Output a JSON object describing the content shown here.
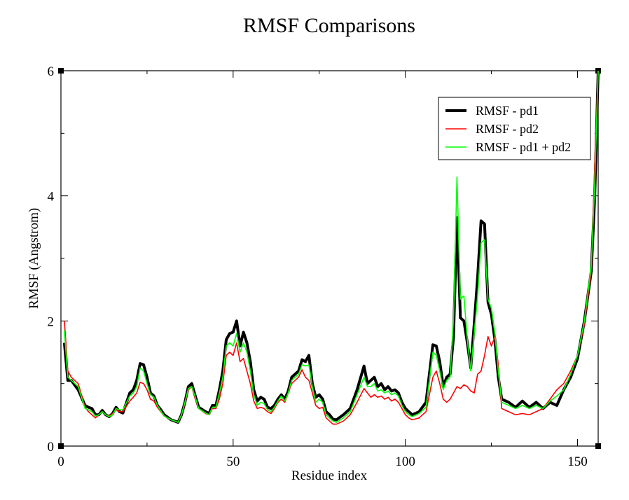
{
  "chart_data": {
    "type": "line",
    "title": "RMSF Comparisons",
    "xlabel": "Residue index",
    "ylabel": "RMSF (Angstrom)",
    "xlim": [
      0,
      156
    ],
    "ylim": [
      0,
      6
    ],
    "xticks": [
      0,
      50,
      100,
      150
    ],
    "yticks": [
      0,
      2,
      4,
      6
    ],
    "legend_position": "top-right",
    "series": [
      {
        "name": "RMSF - pd1",
        "color": "#000000",
        "x": [
          1,
          2,
          3,
          5,
          7,
          8,
          9,
          10,
          11,
          12,
          13,
          14,
          15,
          16,
          17,
          18,
          20,
          21,
          22,
          23,
          24,
          25,
          26,
          27,
          28,
          29,
          30,
          32,
          33,
          34,
          35,
          36,
          37,
          38,
          39,
          40,
          42,
          43,
          44,
          45,
          46,
          47,
          48,
          49,
          50,
          51,
          52,
          53,
          54,
          55,
          56,
          57,
          58,
          59,
          60,
          61,
          62,
          63,
          64,
          65,
          66,
          67,
          68,
          69,
          70,
          71,
          72,
          73,
          74,
          75,
          76,
          77,
          78,
          79,
          80,
          82,
          84,
          86,
          88,
          89,
          90,
          91,
          92,
          93,
          94,
          95,
          96,
          97,
          98,
          99,
          100,
          101,
          102,
          104,
          106,
          108,
          109,
          110,
          111,
          112,
          113,
          114,
          115,
          116,
          117,
          118,
          119,
          120,
          121,
          122,
          123,
          124,
          125,
          126,
          127,
          128,
          130,
          132,
          134,
          136,
          138,
          140,
          142,
          144,
          146,
          148,
          150,
          152,
          154,
          155,
          156
        ],
        "values": [
          1.65,
          1.05,
          1.05,
          0.9,
          0.65,
          0.62,
          0.6,
          0.5,
          0.5,
          0.57,
          0.5,
          0.47,
          0.52,
          0.62,
          0.55,
          0.53,
          0.85,
          0.9,
          1.05,
          1.32,
          1.3,
          1.1,
          0.85,
          0.8,
          0.65,
          0.58,
          0.5,
          0.42,
          0.4,
          0.38,
          0.5,
          0.7,
          0.95,
          1.0,
          0.8,
          0.62,
          0.55,
          0.52,
          0.65,
          0.65,
          0.9,
          1.2,
          1.7,
          1.8,
          1.82,
          2.0,
          1.6,
          1.82,
          1.65,
          1.35,
          0.9,
          0.72,
          0.78,
          0.75,
          0.62,
          0.6,
          0.65,
          0.75,
          0.82,
          0.75,
          0.88,
          1.1,
          1.15,
          1.2,
          1.38,
          1.35,
          1.45,
          1.0,
          0.78,
          0.82,
          0.75,
          0.55,
          0.5,
          0.43,
          0.42,
          0.5,
          0.6,
          0.9,
          1.28,
          1.0,
          1.05,
          1.1,
          0.95,
          1.0,
          0.9,
          0.95,
          0.88,
          0.9,
          0.85,
          0.7,
          0.6,
          0.55,
          0.5,
          0.55,
          0.7,
          1.62,
          1.6,
          1.35,
          0.95,
          1.1,
          1.15,
          1.75,
          3.65,
          2.05,
          2.0,
          1.65,
          1.25,
          1.95,
          2.7,
          3.6,
          3.55,
          2.3,
          2.1,
          1.7,
          1.1,
          0.75,
          0.7,
          0.62,
          0.72,
          0.62,
          0.7,
          0.6,
          0.7,
          0.65,
          0.9,
          1.1,
          1.4,
          2.0,
          2.8,
          4.0,
          6.0
        ]
      },
      {
        "name": "RMSF - pd2",
        "color": "#ff0000",
        "x": [
          1,
          2,
          3,
          5,
          7,
          8,
          9,
          10,
          11,
          12,
          13,
          14,
          15,
          16,
          17,
          18,
          20,
          21,
          22,
          23,
          24,
          25,
          26,
          27,
          28,
          29,
          30,
          32,
          33,
          34,
          35,
          36,
          37,
          38,
          39,
          40,
          42,
          43,
          44,
          45,
          46,
          47,
          48,
          49,
          50,
          51,
          52,
          53,
          54,
          55,
          56,
          57,
          58,
          59,
          60,
          61,
          62,
          63,
          64,
          65,
          66,
          67,
          68,
          69,
          70,
          71,
          72,
          73,
          74,
          75,
          76,
          77,
          78,
          79,
          80,
          82,
          84,
          86,
          88,
          89,
          90,
          91,
          92,
          93,
          94,
          95,
          96,
          97,
          98,
          99,
          100,
          101,
          102,
          104,
          106,
          108,
          109,
          110,
          111,
          112,
          113,
          114,
          115,
          116,
          117,
          118,
          119,
          120,
          121,
          122,
          123,
          124,
          125,
          126,
          127,
          128,
          130,
          132,
          134,
          136,
          138,
          140,
          142,
          144,
          146,
          148,
          150,
          152,
          154,
          155,
          156
        ],
        "values": [
          2.0,
          1.2,
          1.1,
          1.0,
          0.62,
          0.55,
          0.5,
          0.45,
          0.5,
          0.55,
          0.5,
          0.48,
          0.52,
          0.58,
          0.55,
          0.55,
          0.72,
          0.78,
          0.85,
          1.02,
          1.0,
          0.9,
          0.75,
          0.72,
          0.62,
          0.55,
          0.48,
          0.42,
          0.4,
          0.38,
          0.5,
          0.68,
          0.9,
          0.95,
          0.75,
          0.6,
          0.52,
          0.5,
          0.6,
          0.6,
          0.75,
          1.0,
          1.45,
          1.5,
          1.45,
          1.65,
          1.35,
          1.4,
          1.2,
          1.0,
          0.72,
          0.6,
          0.62,
          0.6,
          0.55,
          0.52,
          0.6,
          0.7,
          0.75,
          0.7,
          0.85,
          1.0,
          1.05,
          1.1,
          1.22,
          1.1,
          1.05,
          0.85,
          0.65,
          0.6,
          0.62,
          0.45,
          0.4,
          0.35,
          0.35,
          0.4,
          0.5,
          0.7,
          0.92,
          0.85,
          0.78,
          0.82,
          0.78,
          0.8,
          0.75,
          0.78,
          0.72,
          0.75,
          0.7,
          0.6,
          0.5,
          0.45,
          0.42,
          0.45,
          0.55,
          1.1,
          1.2,
          1.0,
          0.75,
          0.7,
          0.75,
          0.85,
          0.95,
          0.92,
          0.98,
          0.95,
          0.88,
          0.85,
          1.15,
          1.2,
          1.45,
          1.75,
          1.6,
          1.75,
          1.3,
          0.6,
          0.55,
          0.5,
          0.52,
          0.5,
          0.55,
          0.6,
          0.75,
          0.9,
          1.0,
          1.2,
          1.45,
          1.95,
          2.8,
          4.5,
          6.0
        ]
      },
      {
        "name": "RMSF - pd1 + pd2",
        "color": "#00ff00",
        "x": [
          1,
          2,
          3,
          5,
          7,
          8,
          9,
          10,
          11,
          12,
          13,
          14,
          15,
          16,
          17,
          18,
          20,
          21,
          22,
          23,
          24,
          25,
          26,
          27,
          28,
          29,
          30,
          32,
          33,
          34,
          35,
          36,
          37,
          38,
          39,
          40,
          42,
          43,
          44,
          45,
          46,
          47,
          48,
          49,
          50,
          51,
          52,
          53,
          54,
          55,
          56,
          57,
          58,
          59,
          60,
          61,
          62,
          63,
          64,
          65,
          66,
          67,
          68,
          69,
          70,
          71,
          72,
          73,
          74,
          75,
          76,
          77,
          78,
          79,
          80,
          82,
          84,
          86,
          88,
          89,
          90,
          91,
          92,
          93,
          94,
          95,
          96,
          97,
          98,
          99,
          100,
          101,
          102,
          104,
          106,
          108,
          109,
          110,
          111,
          112,
          113,
          114,
          115,
          116,
          117,
          118,
          119,
          120,
          121,
          122,
          123,
          124,
          125,
          126,
          127,
          128,
          130,
          132,
          134,
          136,
          138,
          140,
          142,
          144,
          146,
          148,
          150,
          152,
          154,
          155,
          156
        ],
        "values": [
          1.85,
          1.1,
          1.05,
          0.95,
          0.6,
          0.58,
          0.55,
          0.48,
          0.5,
          0.55,
          0.5,
          0.47,
          0.5,
          0.6,
          0.58,
          0.58,
          0.8,
          0.85,
          0.95,
          1.25,
          1.2,
          1.0,
          0.82,
          0.78,
          0.65,
          0.56,
          0.48,
          0.42,
          0.4,
          0.38,
          0.5,
          0.7,
          0.92,
          0.95,
          0.78,
          0.6,
          0.53,
          0.5,
          0.62,
          0.62,
          0.85,
          1.1,
          1.6,
          1.65,
          1.6,
          1.8,
          1.5,
          1.65,
          1.5,
          1.2,
          0.82,
          0.65,
          0.7,
          0.68,
          0.58,
          0.55,
          0.62,
          0.72,
          0.8,
          0.72,
          0.85,
          1.05,
          1.1,
          1.15,
          1.3,
          1.28,
          1.3,
          0.95,
          0.7,
          0.75,
          0.7,
          0.5,
          0.45,
          0.4,
          0.38,
          0.45,
          0.55,
          0.82,
          1.1,
          0.95,
          0.95,
          1.0,
          0.88,
          0.9,
          0.85,
          0.88,
          0.82,
          0.85,
          0.8,
          0.65,
          0.55,
          0.5,
          0.47,
          0.52,
          0.62,
          1.5,
          1.45,
          1.2,
          0.9,
          1.05,
          1.1,
          2.05,
          4.3,
          2.35,
          2.4,
          1.7,
          1.2,
          1.8,
          2.4,
          3.25,
          3.3,
          2.35,
          2.2,
          1.8,
          1.2,
          0.7,
          0.65,
          0.6,
          0.65,
          0.6,
          0.65,
          0.6,
          0.72,
          0.8,
          0.9,
          1.15,
          1.45,
          2.0,
          2.9,
          4.2,
          6.0
        ]
      }
    ]
  }
}
